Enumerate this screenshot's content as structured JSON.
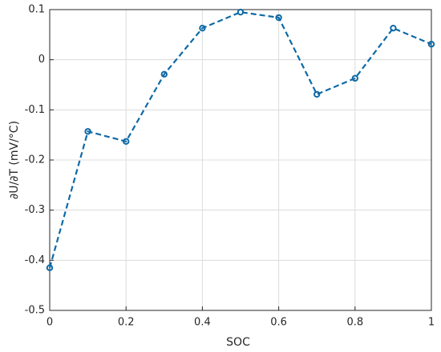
{
  "chart_data": {
    "type": "line",
    "x_label": "SOC",
    "y_label": "∂U/∂T (mV/°C)",
    "x": [
      0,
      0.1,
      0.2,
      0.3,
      0.4,
      0.5,
      0.6,
      0.7,
      0.8,
      0.9,
      1
    ],
    "series": [
      {
        "color": "#0f6aa6",
        "values": [
          -0.415,
          -0.143,
          -0.163,
          -0.029,
          0.063,
          0.095,
          0.084,
          -0.069,
          -0.037,
          0.063,
          0.031
        ]
      }
    ],
    "xlim": [
      0,
      1
    ],
    "xticks": [
      0,
      0.2,
      0.4,
      0.6,
      0.8,
      1
    ],
    "ylim": [
      -0.5,
      0.1
    ],
    "yticks": [
      -0.5,
      -0.4,
      -0.3,
      -0.2,
      -0.1,
      0,
      0.1
    ],
    "grid": true,
    "line_style": "dashed",
    "marker": "circle"
  }
}
